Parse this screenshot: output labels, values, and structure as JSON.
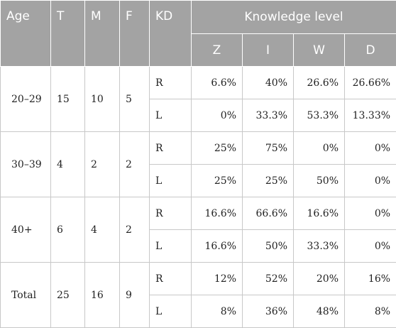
{
  "header": {
    "age": "Age",
    "t": "T",
    "m": "M",
    "f": "F",
    "kd": "KD",
    "knowledge_level": "Knowledge level",
    "levels": [
      "Z",
      "I",
      "W",
      "D"
    ]
  },
  "groups": [
    {
      "age": "20–29",
      "t": "15",
      "m": "10",
      "f": "5",
      "rows": [
        {
          "kd": "R",
          "values": [
            "6.6%",
            "40%",
            "26.6%",
            "26.66%"
          ]
        },
        {
          "kd": "L",
          "values": [
            "0%",
            "33.3%",
            "53.3%",
            "13.33%"
          ]
        }
      ]
    },
    {
      "age": "30–39",
      "t": "4",
      "m": "2",
      "f": "2",
      "rows": [
        {
          "kd": "R",
          "values": [
            "25%",
            "75%",
            "0%",
            "0%"
          ]
        },
        {
          "kd": "L",
          "values": [
            "25%",
            "25%",
            "50%",
            "0%"
          ]
        }
      ]
    },
    {
      "age": "40+",
      "t": "6",
      "m": "4",
      "f": "2",
      "rows": [
        {
          "kd": "R",
          "values": [
            "16.6%",
            "66.6%",
            "16.6%",
            "0%"
          ]
        },
        {
          "kd": "L",
          "values": [
            "16.6%",
            "50%",
            "33.3%",
            "0%"
          ]
        }
      ]
    },
    {
      "age": "Total",
      "t": "25",
      "m": "16",
      "f": "9",
      "rows": [
        {
          "kd": "R",
          "values": [
            "12%",
            "52%",
            "20%",
            "16%"
          ]
        },
        {
          "kd": "L",
          "values": [
            "8%",
            "36%",
            "48%",
            "8%"
          ]
        }
      ]
    }
  ]
}
